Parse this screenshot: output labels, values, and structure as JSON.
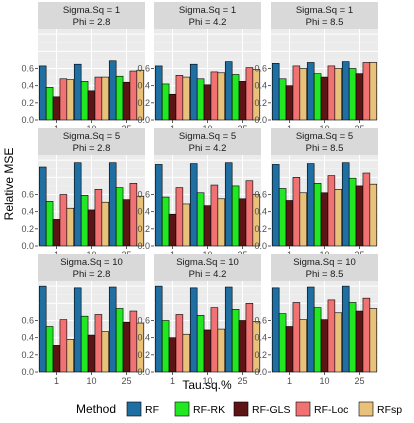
{
  "chart_data": {
    "type": "bar",
    "xlabel": "Tau.sq.%",
    "ylabel": "Relative MSE",
    "x_ticks": [
      "1",
      "10",
      "25"
    ],
    "y_ticks": [
      "0.0",
      "0.2",
      "0.4",
      "0.6"
    ],
    "ylim": [
      0,
      1.06
    ],
    "grid": true,
    "legend": {
      "title": "Method",
      "position": "bottom",
      "entries": [
        "RF",
        "RF-RK",
        "RF-GLS",
        "RF-Loc",
        "RFsp"
      ]
    },
    "colors": {
      "RF": "#1f6fa3",
      "RF-RK": "#22e822",
      "RF-GLS": "#5c1414",
      "RF-Loc": "#f07272",
      "RFsp": "#e8c27a"
    },
    "panels": [
      {
        "strip": [
          "Sigma.Sq = 1",
          "Phi = 2.8"
        ],
        "values": {
          "RF": [
            0.63,
            0.65,
            0.69
          ],
          "RF-RK": [
            0.38,
            0.45,
            0.51
          ],
          "RF-GLS": [
            0.27,
            0.34,
            0.44
          ],
          "RF-Loc": [
            0.48,
            0.5,
            0.57
          ],
          "RFsp": [
            0.47,
            0.5,
            0.58
          ]
        }
      },
      {
        "strip": [
          "Sigma.Sq = 1",
          "Phi = 4.2"
        ],
        "values": {
          "RF": [
            0.63,
            0.65,
            0.68
          ],
          "RF-RK": [
            0.42,
            0.48,
            0.53
          ],
          "RF-GLS": [
            0.3,
            0.41,
            0.45
          ],
          "RF-Loc": [
            0.52,
            0.56,
            0.61
          ],
          "RFsp": [
            0.5,
            0.55,
            0.59
          ]
        }
      },
      {
        "strip": [
          "Sigma.Sq = 1",
          "Phi = 8.5"
        ],
        "values": {
          "RF": [
            0.66,
            0.67,
            0.68
          ],
          "RF-RK": [
            0.48,
            0.54,
            0.6
          ],
          "RF-GLS": [
            0.4,
            0.5,
            0.54
          ],
          "RF-Loc": [
            0.63,
            0.63,
            0.67
          ],
          "RFsp": [
            0.6,
            0.6,
            0.67
          ]
        }
      },
      {
        "strip": [
          "Sigma.Sq = 5",
          "Phi = 2.8"
        ],
        "values": {
          "RF": [
            0.92,
            0.97,
            0.97
          ],
          "RF-RK": [
            0.52,
            0.59,
            0.68
          ],
          "RF-GLS": [
            0.31,
            0.42,
            0.54
          ],
          "RF-Loc": [
            0.6,
            0.66,
            0.73
          ],
          "RFsp": [
            0.44,
            0.51,
            0.58
          ]
        }
      },
      {
        "strip": [
          "Sigma.Sq = 5",
          "Phi = 4.2"
        ],
        "values": {
          "RF": [
            0.95,
            0.96,
            0.97
          ],
          "RF-RK": [
            0.57,
            0.62,
            0.7
          ],
          "RF-GLS": [
            0.37,
            0.47,
            0.55
          ],
          "RF-Loc": [
            0.68,
            0.71,
            0.76
          ],
          "RFsp": [
            0.49,
            0.55,
            0.6
          ]
        }
      },
      {
        "strip": [
          "Sigma.Sq = 5",
          "Phi = 8.5"
        ],
        "values": {
          "RF": [
            0.95,
            0.96,
            0.97
          ],
          "RF-RK": [
            0.67,
            0.73,
            0.79
          ],
          "RF-GLS": [
            0.53,
            0.62,
            0.7
          ],
          "RF-Loc": [
            0.8,
            0.82,
            0.85
          ],
          "RFsp": [
            0.62,
            0.66,
            0.72
          ]
        }
      },
      {
        "strip": [
          "Sigma.Sq = 10",
          "Phi = 2.8"
        ],
        "values": {
          "RF": [
            1.0,
            0.98,
            0.99
          ],
          "RF-RK": [
            0.53,
            0.65,
            0.74
          ],
          "RF-GLS": [
            0.31,
            0.43,
            0.58
          ],
          "RF-Loc": [
            0.61,
            0.67,
            0.71
          ],
          "RFsp": [
            0.38,
            0.47,
            0.57
          ]
        }
      },
      {
        "strip": [
          "Sigma.Sq = 10",
          "Phi = 4.2"
        ],
        "values": {
          "RF": [
            1.0,
            0.98,
            0.99
          ],
          "RF-RK": [
            0.6,
            0.66,
            0.73
          ],
          "RF-GLS": [
            0.4,
            0.49,
            0.6
          ],
          "RF-Loc": [
            0.67,
            0.75,
            0.8
          ],
          "RFsp": [
            0.44,
            0.5,
            0.59
          ]
        }
      },
      {
        "strip": [
          "Sigma.Sq = 10",
          "Phi = 8.5"
        ],
        "values": {
          "RF": [
            0.98,
            0.99,
            1.0
          ],
          "RF-RK": [
            0.68,
            0.75,
            0.81
          ],
          "RF-GLS": [
            0.53,
            0.61,
            0.71
          ],
          "RF-Loc": [
            0.81,
            0.84,
            0.86
          ],
          "RFsp": [
            0.61,
            0.69,
            0.74
          ]
        }
      }
    ]
  }
}
